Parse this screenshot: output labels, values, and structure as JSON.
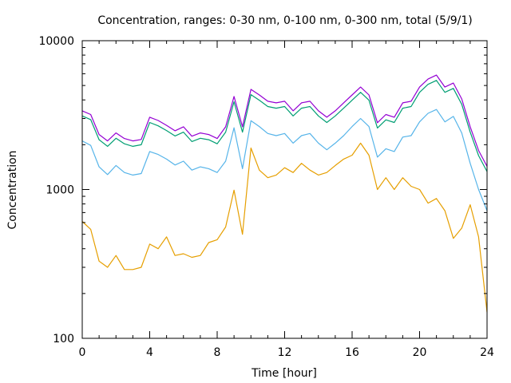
{
  "chart_data": {
    "type": "line",
    "title": "Concentration, ranges: 0-30 nm, 0-100 nm, 0-300 nm, total (5/9/1)",
    "xlabel": "Time [hour]",
    "ylabel": "Concentration",
    "xlim": [
      0,
      24
    ],
    "ylim": [
      100,
      10000
    ],
    "yscale": "log",
    "grid": false,
    "legend": "none",
    "x_ticks": [
      0,
      4,
      8,
      12,
      16,
      20,
      24
    ],
    "x_tick_labels": [
      "0",
      "4",
      "8",
      "12",
      "16",
      "20",
      "24"
    ],
    "y_ticks": [
      100,
      1000,
      10000
    ],
    "y_tick_labels": [
      "100",
      "1000",
      "10000"
    ],
    "x": [
      0,
      0.5,
      1,
      1.5,
      2,
      2.5,
      3,
      3.5,
      4,
      4.5,
      5,
      5.5,
      6,
      6.5,
      7,
      7.5,
      8,
      8.5,
      9,
      9.5,
      10,
      10.5,
      11,
      11.5,
      12,
      12.5,
      13,
      13.5,
      14,
      14.5,
      15,
      15.5,
      16,
      16.5,
      17,
      17.5,
      18,
      18.5,
      19,
      19.5,
      20,
      20.5,
      21,
      21.5,
      22,
      22.5,
      23,
      23.5,
      24
    ],
    "series": [
      {
        "name": "total",
        "color": "#9400d3",
        "values": [
          3380,
          3190,
          2340,
          2120,
          2400,
          2200,
          2120,
          2170,
          3060,
          2910,
          2700,
          2480,
          2640,
          2280,
          2400,
          2340,
          2200,
          2640,
          4220,
          2640,
          4710,
          4320,
          3920,
          3820,
          3920,
          3380,
          3820,
          3920,
          3380,
          3060,
          3380,
          3820,
          4320,
          4880,
          4320,
          2810,
          3190,
          3060,
          3820,
          3920,
          4880,
          5520,
          5870,
          4880,
          5190,
          4060,
          2640,
          1830,
          1430
        ]
      },
      {
        "name": "0-300 nm",
        "color": "#009e73",
        "values": [
          3120,
          2950,
          2160,
          1950,
          2210,
          2030,
          1950,
          2000,
          2820,
          2680,
          2490,
          2290,
          2430,
          2100,
          2210,
          2160,
          2030,
          2430,
          3890,
          2430,
          4340,
          3980,
          3610,
          3520,
          3610,
          3120,
          3520,
          3610,
          3120,
          2820,
          3120,
          3520,
          3980,
          4500,
          3980,
          2590,
          2940,
          2820,
          3520,
          3610,
          4500,
          5090,
          5410,
          4500,
          4780,
          3740,
          2430,
          1690,
          1320
        ]
      },
      {
        "name": "0-100 nm",
        "color": "#56b4e9",
        "values": [
          2120,
          1980,
          1420,
          1260,
          1450,
          1300,
          1250,
          1280,
          1800,
          1720,
          1600,
          1460,
          1550,
          1350,
          1420,
          1380,
          1300,
          1550,
          2600,
          1380,
          2900,
          2650,
          2380,
          2300,
          2380,
          2050,
          2300,
          2380,
          2050,
          1850,
          2050,
          2300,
          2650,
          3000,
          2650,
          1650,
          1880,
          1800,
          2250,
          2300,
          2850,
          3250,
          3450,
          2850,
          3100,
          2400,
          1500,
          1000,
          720
        ]
      },
      {
        "name": "0-30 nm",
        "color": "#e69f00",
        "values": [
          610,
          540,
          330,
          300,
          360,
          290,
          290,
          300,
          430,
          400,
          480,
          360,
          370,
          350,
          360,
          440,
          460,
          560,
          990,
          500,
          1900,
          1350,
          1200,
          1250,
          1400,
          1300,
          1500,
          1350,
          1250,
          1300,
          1450,
          1600,
          1700,
          2050,
          1700,
          1000,
          1200,
          1000,
          1200,
          1050,
          1000,
          810,
          870,
          720,
          470,
          550,
          790,
          480,
          150
        ]
      }
    ]
  }
}
